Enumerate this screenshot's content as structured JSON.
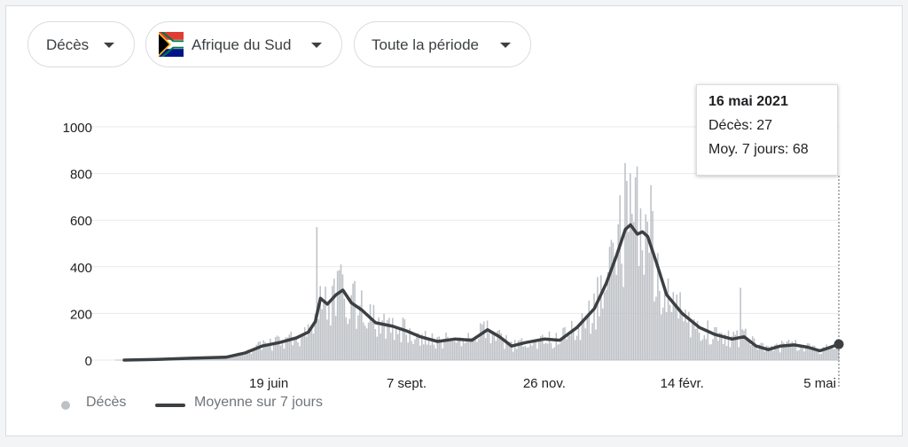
{
  "filters": {
    "metric": "Décès",
    "country": "Afrique du Sud",
    "period": "Toute la période"
  },
  "tooltip": {
    "date": "16 mai 2021",
    "deaths_label": "Décès",
    "deaths_value": "27",
    "avg_label": "Moy. 7 jours",
    "avg_value": "68"
  },
  "legend": {
    "bars": "Décès",
    "line": "Moyenne sur 7 jours"
  },
  "colors": {
    "bars": "#bdc1c6",
    "line": "#3c4043",
    "grid": "#e8eaed"
  },
  "chart_data": {
    "type": "bar",
    "title": "",
    "xlabel": "",
    "ylabel": "",
    "ylim": [
      0,
      1000
    ],
    "yticks": [
      0,
      200,
      400,
      600,
      800,
      1000
    ],
    "x_range": [
      "2020-03-27",
      "2021-05-16"
    ],
    "xticks": [
      {
        "date": "2020-06-19",
        "label": "19 juin"
      },
      {
        "date": "2020-09-07",
        "label": "7 sept."
      },
      {
        "date": "2020-11-26",
        "label": "26 nov."
      },
      {
        "date": "2021-02-14",
        "label": "14 févr."
      },
      {
        "date": "2021-05-05",
        "label": "5 mai"
      }
    ],
    "grid": true,
    "series": [
      {
        "name": "Moyenne sur 7 jours",
        "type": "line",
        "points": [
          [
            "2020-03-27",
            0
          ],
          [
            "2020-04-15",
            3
          ],
          [
            "2020-05-05",
            8
          ],
          [
            "2020-05-25",
            12
          ],
          [
            "2020-06-05",
            30
          ],
          [
            "2020-06-15",
            60
          ],
          [
            "2020-06-25",
            75
          ],
          [
            "2020-07-05",
            95
          ],
          [
            "2020-07-12",
            120
          ],
          [
            "2020-07-16",
            165
          ],
          [
            "2020-07-19",
            265
          ],
          [
            "2020-07-23",
            240
          ],
          [
            "2020-07-28",
            280
          ],
          [
            "2020-08-01",
            300
          ],
          [
            "2020-08-06",
            245
          ],
          [
            "2020-08-12",
            215
          ],
          [
            "2020-08-20",
            160
          ],
          [
            "2020-08-30",
            145
          ],
          [
            "2020-09-07",
            125
          ],
          [
            "2020-09-15",
            100
          ],
          [
            "2020-09-25",
            80
          ],
          [
            "2020-10-05",
            90
          ],
          [
            "2020-10-15",
            85
          ],
          [
            "2020-10-24",
            130
          ],
          [
            "2020-10-31",
            100
          ],
          [
            "2020-11-07",
            60
          ],
          [
            "2020-11-15",
            75
          ],
          [
            "2020-11-26",
            90
          ],
          [
            "2020-12-05",
            85
          ],
          [
            "2020-12-15",
            140
          ],
          [
            "2020-12-25",
            220
          ],
          [
            "2021-01-01",
            330
          ],
          [
            "2021-01-07",
            450
          ],
          [
            "2021-01-12",
            560
          ],
          [
            "2021-01-15",
            580
          ],
          [
            "2021-01-19",
            540
          ],
          [
            "2021-01-22",
            550
          ],
          [
            "2021-01-25",
            530
          ],
          [
            "2021-01-30",
            420
          ],
          [
            "2021-02-05",
            280
          ],
          [
            "2021-02-14",
            200
          ],
          [
            "2021-02-24",
            140
          ],
          [
            "2021-03-05",
            110
          ],
          [
            "2021-03-15",
            90
          ],
          [
            "2021-03-22",
            100
          ],
          [
            "2021-03-29",
            60
          ],
          [
            "2021-04-05",
            45
          ],
          [
            "2021-04-12",
            60
          ],
          [
            "2021-04-20",
            65
          ],
          [
            "2021-04-28",
            55
          ],
          [
            "2021-05-05",
            40
          ],
          [
            "2021-05-10",
            52
          ],
          [
            "2021-05-16",
            68
          ]
        ]
      },
      {
        "name": "Décès",
        "type": "bar",
        "daily_note": "one bar per day, values estimated; spikes listed",
        "spikes": [
          [
            "2020-07-17",
            570
          ],
          [
            "2020-07-22",
            315
          ],
          [
            "2020-07-31",
            410
          ],
          [
            "2021-01-12",
            845
          ],
          [
            "2021-01-15",
            800
          ],
          [
            "2021-01-19",
            830
          ],
          [
            "2021-01-27",
            750
          ],
          [
            "2021-02-06",
            350
          ],
          [
            "2021-03-20",
            310
          ]
        ]
      }
    ]
  }
}
